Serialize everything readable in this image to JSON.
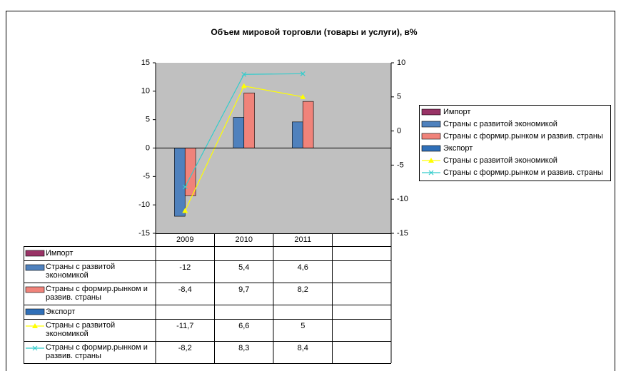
{
  "chart_data": {
    "type": "bar",
    "title": "Объем мировой торговли (товары и услуги), в%",
    "categories": [
      "2009",
      "2010",
      "2011",
      null
    ],
    "ylim": [
      -15,
      15
    ],
    "yticks": [
      -15,
      -10,
      -5,
      0,
      5,
      10,
      15
    ],
    "y2lim": [
      -15,
      10
    ],
    "y2ticks": [
      -15,
      -10,
      -5,
      0,
      5,
      10
    ],
    "legend": "right",
    "data_table": true,
    "series": [
      {
        "name": "Импорт",
        "type": "bar",
        "color": "#993366",
        "values": [
          null,
          null,
          null,
          null
        ]
      },
      {
        "name": "Страны с развитой экономикой",
        "type": "bar",
        "color": "#4f81bd",
        "values": [
          -12,
          5.4,
          4.6,
          null
        ],
        "value_labels": [
          "-12",
          "5,4",
          "4,6",
          null
        ]
      },
      {
        "name": "Страны с формир.рынком и развив. страны",
        "type": "bar",
        "color": "#f0837a",
        "values": [
          -8.4,
          9.7,
          8.2,
          null
        ],
        "value_labels": [
          "-8,4",
          "9,7",
          "8,2",
          null
        ]
      },
      {
        "name": "Экспорт",
        "type": "bar",
        "color": "#2f6fb8",
        "values": [
          null,
          null,
          null,
          null
        ]
      },
      {
        "name": "Страны с развитой экономикой",
        "type": "line",
        "axis": "y2",
        "marker": "triangle",
        "color": "#ffff00",
        "values": [
          -11.7,
          6.6,
          5,
          null
        ],
        "value_labels": [
          "-11,7",
          "6,6",
          "5",
          null
        ]
      },
      {
        "name": "Страны с формир.рынком и развив. страны",
        "type": "line",
        "axis": "y2",
        "marker": "x",
        "color": "#33cccc",
        "values": [
          -8.2,
          8.3,
          8.4,
          null
        ],
        "value_labels": [
          "-8,2",
          "8,3",
          "8,4",
          null
        ]
      }
    ]
  }
}
